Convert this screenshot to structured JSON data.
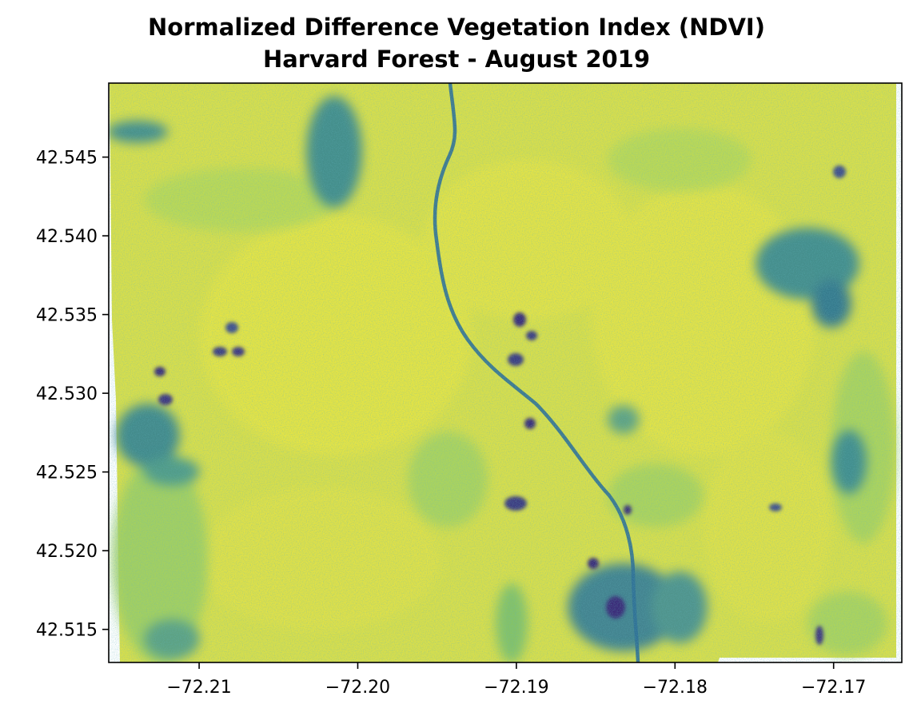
{
  "figure": {
    "title_line1": "Normalized Difference Vegetation Index (NDVI)",
    "title_line2": "Harvard Forest - August 2019"
  },
  "axes": {
    "x_ticks": [
      {
        "value": -72.21,
        "label": "−72.21"
      },
      {
        "value": -72.2,
        "label": "−72.20"
      },
      {
        "value": -72.19,
        "label": "−72.19"
      },
      {
        "value": -72.18,
        "label": "−72.18"
      },
      {
        "value": -72.17,
        "label": "−72.17"
      }
    ],
    "y_ticks": [
      {
        "value": 42.545,
        "label": "42.545"
      },
      {
        "value": 42.54,
        "label": "42.540"
      },
      {
        "value": 42.535,
        "label": "42.535"
      },
      {
        "value": 42.53,
        "label": "42.530"
      },
      {
        "value": 42.525,
        "label": "42.525"
      },
      {
        "value": 42.52,
        "label": "42.520"
      },
      {
        "value": 42.515,
        "label": "42.515"
      }
    ],
    "x_range": [
      -72.2157,
      -72.1657
    ],
    "y_range": [
      42.5129,
      42.5497
    ],
    "grid": false
  },
  "colors": {
    "colormap": "viridis",
    "high_ndvi": "#e3e246",
    "mid_ndvi": "#9fd061",
    "low_ndvi": "#2f6f96",
    "lowest_ndvi": "#3b2a78"
  }
}
